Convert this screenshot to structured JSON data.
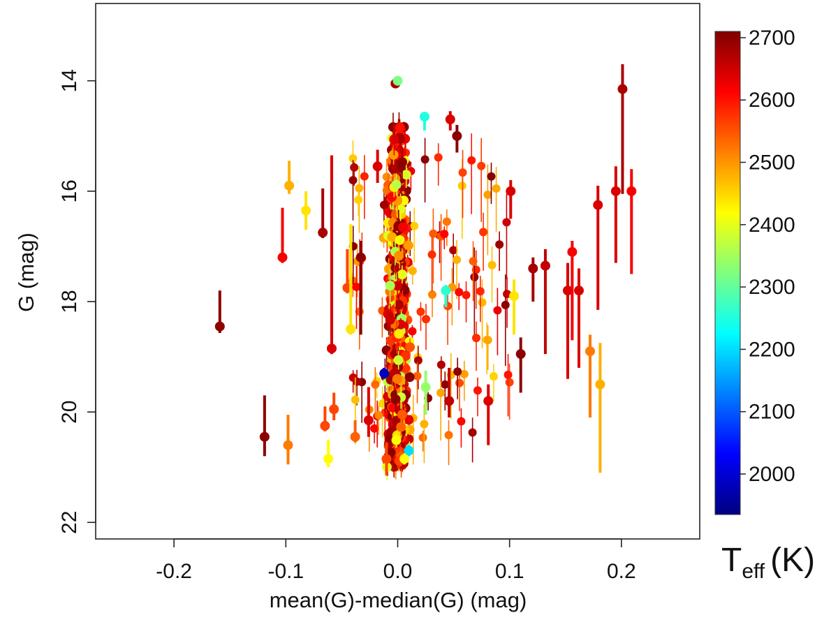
{
  "chart_data": {
    "type": "scatter",
    "title": "",
    "xlabel": "mean(G)-median(G) (mag)",
    "ylabel": "G (mag)",
    "xlim": [
      -0.27,
      0.27
    ],
    "ylim": [
      22.3,
      12.6
    ],
    "y_inverted": true,
    "grid": false,
    "x_ticks": [
      -0.2,
      -0.1,
      0.0,
      0.1,
      0.2
    ],
    "x_tick_labels": [
      "-0.2",
      "-0.1",
      "0.0",
      "0.1",
      "0.2"
    ],
    "y_ticks": [
      14,
      16,
      18,
      20,
      22
    ],
    "y_tick_labels": [
      "14",
      "16",
      "18",
      "20",
      "22"
    ],
    "colorbar": {
      "label_main": "T",
      "label_sub": "eff",
      "label_unit": "(K)",
      "range": [
        1935,
        2710
      ],
      "ticks": [
        2000,
        2100,
        2200,
        2300,
        2400,
        2500,
        2600,
        2700
      ],
      "tick_labels": [
        "2000",
        "2100",
        "2200",
        "2300",
        "2400",
        "2500",
        "2600",
        "2700"
      ],
      "colormap": "jet",
      "colors": [
        "#00007f",
        "#0000ff",
        "#007fff",
        "#00ffff",
        "#7fff7f",
        "#ffff00",
        "#ff7f00",
        "#ff0000",
        "#7f0000"
      ]
    },
    "highlighted_points": [
      {
        "x": -0.159,
        "y": 18.45,
        "err_lo": 0.65,
        "err_hi": 0.12,
        "teff": 2700
      },
      {
        "x": -0.119,
        "y": 20.45,
        "err_lo": 0.75,
        "err_hi": 0.35,
        "teff": 2700
      },
      {
        "x": -0.103,
        "y": 17.2,
        "err_lo": 0.9,
        "err_hi": 0.1,
        "teff": 2620
      },
      {
        "x": -0.098,
        "y": 20.6,
        "err_lo": 0.55,
        "err_hi": 0.35,
        "teff": 2520
      },
      {
        "x": -0.097,
        "y": 15.9,
        "err_lo": 0.45,
        "err_hi": 0.15,
        "teff": 2480
      },
      {
        "x": -0.082,
        "y": 16.35,
        "err_lo": 0.35,
        "err_hi": 0.35,
        "teff": 2440
      },
      {
        "x": -0.067,
        "y": 16.75,
        "err_lo": 0.8,
        "err_hi": 0.1,
        "teff": 2680
      },
      {
        "x": -0.065,
        "y": 20.25,
        "err_lo": 0.35,
        "err_hi": 0.1,
        "teff": 2560
      },
      {
        "x": -0.062,
        "y": 20.85,
        "err_lo": 0.35,
        "err_hi": 0.15,
        "teff": 2420
      },
      {
        "x": -0.059,
        "y": 18.85,
        "err_lo": 3.5,
        "err_hi": 0.1,
        "teff": 2640
      },
      {
        "x": -0.057,
        "y": 19.95,
        "err_lo": 0.3,
        "err_hi": 0.2,
        "teff": 2560
      },
      {
        "x": -0.045,
        "y": 17.75,
        "err_lo": 0.7,
        "err_hi": 0.1,
        "teff": 2560
      },
      {
        "x": -0.042,
        "y": 18.5,
        "err_lo": 1.9,
        "err_hi": 0.1,
        "teff": 2440
      },
      {
        "x": -0.038,
        "y": 20.45,
        "err_lo": 0.3,
        "err_hi": 0.1,
        "teff": 2540
      },
      {
        "x": -0.033,
        "y": 17.2,
        "err_lo": 0.3,
        "err_hi": 1.4,
        "teff": 2700
      },
      {
        "x": -0.026,
        "y": 20.15,
        "err_lo": 0.6,
        "err_hi": 0.3,
        "teff": 2640
      },
      {
        "x": -0.018,
        "y": 15.55,
        "err_lo": 0.3,
        "err_hi": 0.3,
        "teff": 2640
      },
      {
        "x": -0.012,
        "y": 19.3,
        "err_lo": 0.1,
        "err_hi": 0.1,
        "teff": 1980
      },
      {
        "x": -0.01,
        "y": 20.85,
        "err_lo": 0.3,
        "err_hi": 0.3,
        "teff": 2560
      },
      {
        "x": -0.002,
        "y": 14.05,
        "err_lo": 0.05,
        "err_hi": 0.05,
        "teff": 2680
      },
      {
        "x": 0.0,
        "y": 14.0,
        "err_lo": 0.05,
        "err_hi": 0.05,
        "teff": 2320
      },
      {
        "x": 0.002,
        "y": 14.85,
        "err_lo": 0.1,
        "err_hi": 0.1,
        "teff": 2600
      },
      {
        "x": 0.01,
        "y": 20.7,
        "err_lo": 0.1,
        "err_hi": 0.1,
        "teff": 2200
      },
      {
        "x": 0.006,
        "y": 20.85,
        "err_lo": 0.1,
        "err_hi": 0.1,
        "teff": 2420
      },
      {
        "x": 0.024,
        "y": 14.65,
        "err_lo": 0.05,
        "err_hi": 0.25,
        "teff": 2250
      },
      {
        "x": 0.025,
        "y": 19.55,
        "err_lo": 0.3,
        "err_hi": 0.5,
        "teff": 2340
      },
      {
        "x": 0.043,
        "y": 17.8,
        "err_lo": 0.1,
        "err_hi": 0.3,
        "teff": 2260
      },
      {
        "x": 0.047,
        "y": 14.7,
        "err_lo": 0.15,
        "err_hi": 0.2,
        "teff": 2640
      },
      {
        "x": 0.053,
        "y": 15.0,
        "err_lo": 0.2,
        "err_hi": 0.3,
        "teff": 2700
      },
      {
        "x": 0.046,
        "y": 19.8,
        "err_lo": 0.6,
        "err_hi": 0.3,
        "teff": 2660
      },
      {
        "x": 0.081,
        "y": 19.8,
        "err_lo": 0.3,
        "err_hi": 0.8,
        "teff": 2640
      },
      {
        "x": 0.101,
        "y": 16.0,
        "err_lo": 0.2,
        "err_hi": 0.5,
        "teff": 2640
      },
      {
        "x": 0.104,
        "y": 17.9,
        "err_lo": 0.3,
        "err_hi": 0.7,
        "teff": 2440
      },
      {
        "x": 0.11,
        "y": 18.95,
        "err_lo": 0.3,
        "err_hi": 0.7,
        "teff": 2700
      },
      {
        "x": 0.121,
        "y": 17.4,
        "err_lo": 0.2,
        "err_hi": 0.6,
        "teff": 2680
      },
      {
        "x": 0.132,
        "y": 17.35,
        "err_lo": 0.3,
        "err_hi": 1.6,
        "teff": 2660
      },
      {
        "x": 0.152,
        "y": 17.8,
        "err_lo": 0.5,
        "err_hi": 1.6,
        "teff": 2640
      },
      {
        "x": 0.156,
        "y": 17.1,
        "err_lo": 0.2,
        "err_hi": 1.6,
        "teff": 2620
      },
      {
        "x": 0.162,
        "y": 17.8,
        "err_lo": 0.4,
        "err_hi": 1.4,
        "teff": 2640
      },
      {
        "x": 0.172,
        "y": 18.9,
        "err_lo": 0.3,
        "err_hi": 1.2,
        "teff": 2520
      },
      {
        "x": 0.179,
        "y": 16.25,
        "err_lo": 0.35,
        "err_hi": 1.9,
        "teff": 2640
      },
      {
        "x": 0.181,
        "y": 19.5,
        "err_lo": 0.75,
        "err_hi": 1.6,
        "teff": 2480
      },
      {
        "x": 0.195,
        "y": 16.0,
        "err_lo": 0.45,
        "err_hi": 1.3,
        "teff": 2640
      },
      {
        "x": 0.201,
        "y": 14.15,
        "err_lo": 0.45,
        "err_hi": 1.9,
        "teff": 2680
      },
      {
        "x": 0.209,
        "y": 16.0,
        "err_lo": 0.4,
        "err_hi": 1.5,
        "teff": 2620
      }
    ],
    "bulk_points": {
      "description": "dense cluster of several hundred stars near x=0 spanning G 14.8-21, plus a broad scatter wing to x~0.1",
      "cluster_x_center": 0.0,
      "cluster_x_sd": 0.004,
      "cluster_y_range": [
        14.8,
        21.0
      ],
      "cluster_count": 650,
      "cluster_teff_range": [
        2350,
        2700
      ],
      "wing_count": 110,
      "wing_x_range": [
        -0.04,
        0.1
      ],
      "wing_y_range": [
        15.3,
        20.5
      ],
      "seed": 11
    }
  }
}
